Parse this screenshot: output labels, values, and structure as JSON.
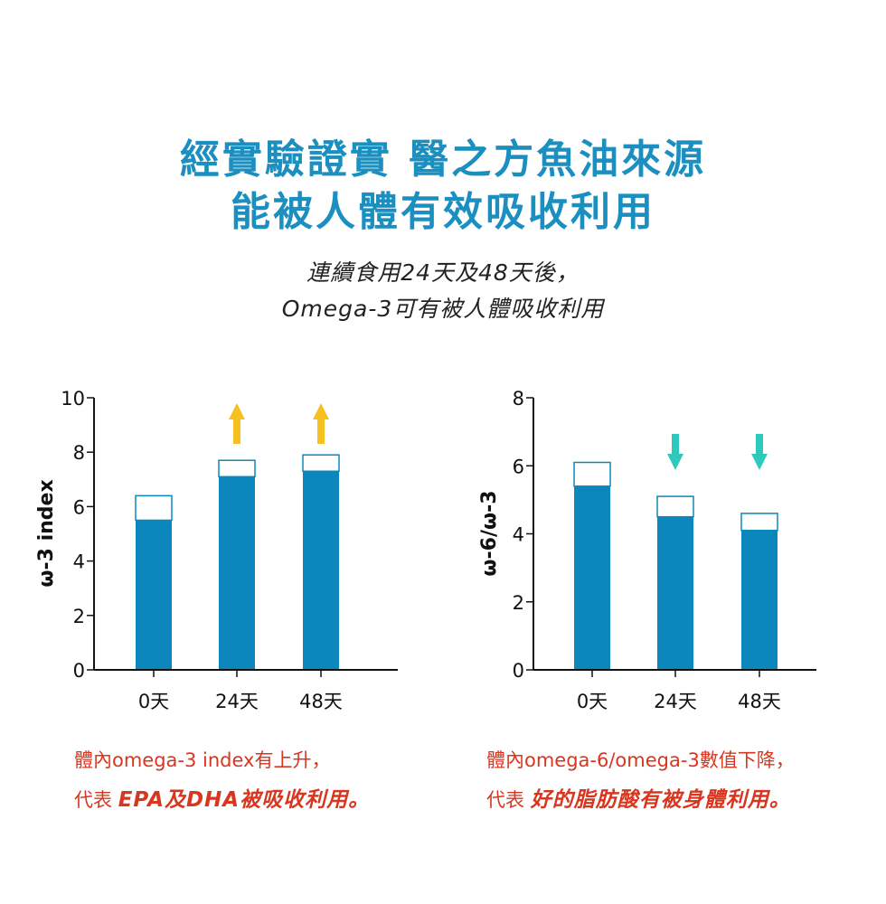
{
  "header": {
    "title_line1": "經實驗證實 醫之方魚油來源",
    "title_line2": "能被人體有效吸收利用",
    "subtitle_line1": "連續食用24天及48天後，",
    "subtitle_line2": "Omega-3可有被人體吸收利用"
  },
  "colors": {
    "title": "#1b8fc0",
    "bar_fill": "#0b87bd",
    "up_arrow": "#f6c01e",
    "down_arrow": "#2ec9bd",
    "caption": "#d9361f"
  },
  "chart_data": [
    {
      "type": "bar",
      "ylabel": "ω-3 index",
      "ylim": [
        0,
        10
      ],
      "yticks": [
        "0",
        "2",
        "4",
        "6",
        "8",
        "10"
      ],
      "categories": [
        "0天",
        "24天",
        "48天"
      ],
      "series": [
        {
          "values": [
            5.5,
            7.1,
            7.3
          ]
        },
        {
          "values": [
            6.4,
            7.7,
            7.9
          ]
        }
      ],
      "arrows": [
        "none",
        "up",
        "up"
      ],
      "caption_line1": "體內omega-3 index有上升，",
      "caption_line2_prefix": "代表 ",
      "caption_line2_emphasis": "EPA及DHA被吸收利用。"
    },
    {
      "type": "bar",
      "ylabel": "ω-6/ω-3",
      "ylim": [
        0,
        8
      ],
      "yticks": [
        "0",
        "2",
        "4",
        "6",
        "8"
      ],
      "categories": [
        "0天",
        "24天",
        "48天"
      ],
      "series": [
        {
          "values": [
            5.4,
            4.5,
            4.1
          ]
        },
        {
          "values": [
            6.1,
            5.1,
            4.6
          ]
        }
      ],
      "arrows": [
        "none",
        "down",
        "down"
      ],
      "caption_line1": "體內omega-6/omega-3數值下降，",
      "caption_line2_prefix": "代表 ",
      "caption_line2_emphasis": "好的脂肪酸有被身體利用。"
    }
  ]
}
